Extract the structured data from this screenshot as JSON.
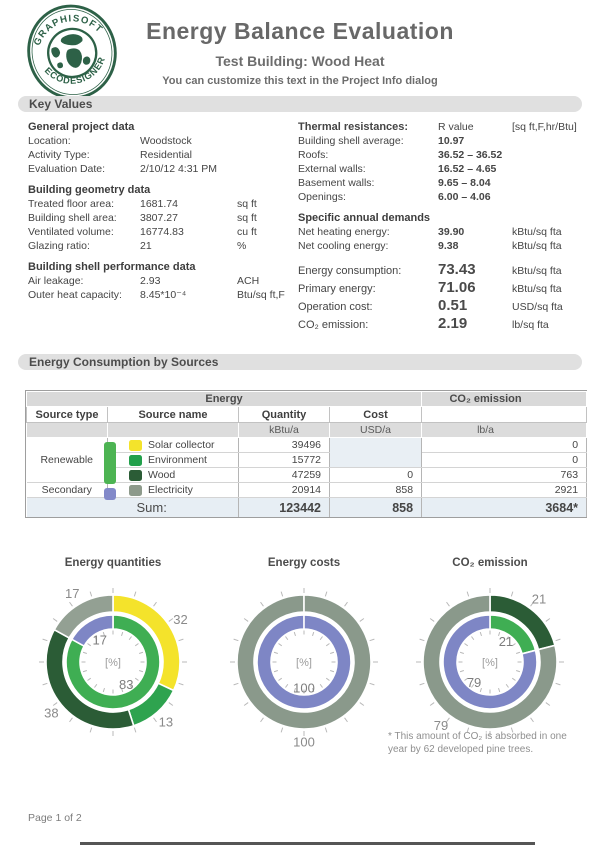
{
  "header": {
    "logo_top": "GRAPHISOFT",
    "logo_bottom": "ECODESIGNER",
    "title": "Energy Balance Evaluation",
    "subtitle": "Test Building: Wood Heat",
    "note": "You can customize this text in the Project Info dialog"
  },
  "sections": {
    "key_values": "Key Values",
    "consumption": "Energy Consumption by Sources"
  },
  "kv_left": {
    "groups": [
      {
        "heading": "General project data",
        "rows": [
          {
            "l": "Location:",
            "v": "Woodstock",
            "u": ""
          },
          {
            "l": "Activity Type:",
            "v": "Residential",
            "u": ""
          },
          {
            "l": "Evaluation Date:",
            "v": "2/10/12 4:31 PM",
            "u": ""
          }
        ]
      },
      {
        "heading": "Building geometry data",
        "rows": [
          {
            "l": "Treated floor area:",
            "v": "1681.74",
            "u": "sq ft"
          },
          {
            "l": "Building shell area:",
            "v": "3807.27",
            "u": "sq ft"
          },
          {
            "l": "Ventilated volume:",
            "v": "16774.83",
            "u": "cu ft"
          },
          {
            "l": "Glazing ratio:",
            "v": "21",
            "u": "%"
          }
        ]
      },
      {
        "heading": "Building shell performance data",
        "rows": [
          {
            "l": "Air leakage:",
            "v": "2.93",
            "u": "ACH"
          },
          {
            "l": "Outer heat capacity:",
            "v": "8.45*10⁻⁴",
            "u": "Btu/sq ft,F"
          }
        ]
      }
    ]
  },
  "kv_right": {
    "thermal_heading": "Thermal resistances:",
    "thermal_col": "R value",
    "thermal_unit": "[sq ft,F,hr/Btu]",
    "thermal_rows": [
      {
        "l": "Building shell average:",
        "v": "10.97"
      },
      {
        "l": "Roofs:",
        "v": "36.52 – 36.52"
      },
      {
        "l": "External walls:",
        "v": "16.52 – 4.65"
      },
      {
        "l": "Basement walls:",
        "v": "9.65 – 8.04"
      },
      {
        "l": "Openings:",
        "v": "6.00 – 4.06"
      }
    ],
    "demands_heading": "Specific annual demands",
    "demand_rows": [
      {
        "l": "Net heating energy:",
        "v": "39.90",
        "u": "kBtu/sq fta"
      },
      {
        "l": "Net cooling energy:",
        "v": "9.38",
        "u": "kBtu/sq fta"
      }
    ],
    "summary_rows": [
      {
        "l": "Energy consumption:",
        "v": "73.43",
        "u": "kBtu/sq fta"
      },
      {
        "l": "Primary energy:",
        "v": "71.06",
        "u": "kBtu/sq fta"
      },
      {
        "l": "Operation cost:",
        "v": "0.51",
        "u": "USD/sq fta"
      },
      {
        "l": "CO₂ emission:",
        "v": "2.19",
        "u": "lb/sq fta"
      }
    ]
  },
  "table": {
    "group_energy": "Energy",
    "group_co2": "CO₂ emission",
    "col_source_type": "Source type",
    "col_source_name": "Source name",
    "col_quantity": "Quantity",
    "col_cost": "Cost",
    "unit_quantity": "kBtu/a",
    "unit_cost": "USD/a",
    "unit_co2": "lb/a",
    "type_renewable": "Renewable",
    "type_secondary": "Secondary",
    "rows": [
      {
        "name": "Solar collector",
        "swatch": "#f4e32b",
        "quantity": "39496",
        "co2": "0"
      },
      {
        "name": "Environment",
        "swatch": "#22a04b",
        "quantity": "15772",
        "co2": "0"
      },
      {
        "name": "Wood",
        "swatch": "#2b5c36",
        "quantity": "47259",
        "cost": "0",
        "co2": "763"
      },
      {
        "name": "Electricity",
        "swatch": "#8d9a8b",
        "quantity": "20914",
        "cost": "858",
        "co2": "2921"
      }
    ],
    "sum_label": "Sum:",
    "sum_quantity": "123442",
    "sum_cost": "858",
    "sum_co2": "3684*",
    "bar_renewable_color": "#4db453",
    "bar_secondary_color": "#8289c9"
  },
  "chart_data": [
    {
      "type": "donut",
      "title": "Energy quantities",
      "center_label": "[%]",
      "outer": [
        {
          "name": "Solar collector",
          "value": 32,
          "color": "#f4e32b"
        },
        {
          "name": "Environment",
          "value": 13,
          "color": "#2ea34f"
        },
        {
          "name": "Wood",
          "value": 38,
          "color": "#2b5c36"
        },
        {
          "name": "Electricity",
          "value": 17,
          "color": "#93a093"
        }
      ],
      "inner": [
        {
          "name": "Renewable",
          "value": 83,
          "color": "#3fae53"
        },
        {
          "name": "Secondary",
          "value": 17,
          "color": "#7e86c5"
        }
      ]
    },
    {
      "type": "donut",
      "title": "Energy costs",
      "center_label": "[%]",
      "outer": [
        {
          "name": "Electricity",
          "value": 100,
          "color": "#8a998b"
        }
      ],
      "inner": [
        {
          "name": "Secondary",
          "value": 100,
          "color": "#7e86c5"
        }
      ]
    },
    {
      "type": "donut",
      "title": "CO₂ emission",
      "center_label": "[%]",
      "outer": [
        {
          "name": "Wood",
          "value": 21,
          "color": "#2b5c36"
        },
        {
          "name": "Electricity",
          "value": 79,
          "color": "#8a998b"
        }
      ],
      "inner": [
        {
          "name": "Renewable",
          "value": 21,
          "color": "#3fae53"
        },
        {
          "name": "Secondary",
          "value": 79,
          "color": "#7e86c5"
        }
      ]
    }
  ],
  "footnote": "* This amount of CO₂ is absorbed in one year by 62 developed pine trees.",
  "footer": "Page 1 of 2"
}
